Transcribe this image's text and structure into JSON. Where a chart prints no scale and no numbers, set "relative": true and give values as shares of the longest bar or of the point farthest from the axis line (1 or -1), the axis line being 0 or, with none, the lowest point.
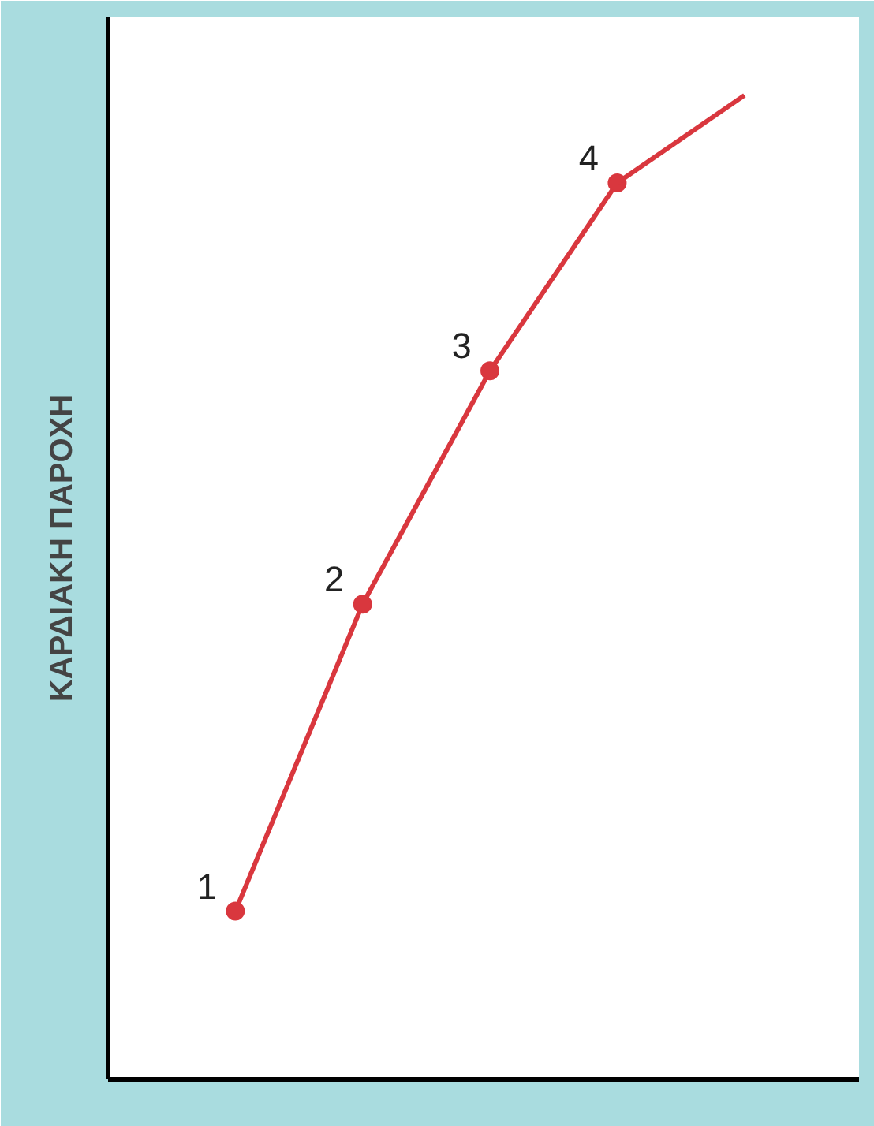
{
  "chart_data": {
    "type": "line",
    "relative": true,
    "ylabel": "ΚΑΡΔΙΑΚΗ ΠΑΡΟΧΗ",
    "line_style": "solid",
    "categories": [
      null,
      null,
      null,
      null,
      null
    ],
    "series": [
      {
        "color": "#d9373e",
        "values": [
          0.171,
          0.483,
          0.72,
          0.911,
          null
        ],
        "marker": "circle"
      },
      {
        "color": "#d9373e",
        "values": [
          null,
          null,
          null,
          0.911,
          1
        ]
      }
    ],
    "annotations": [
      "1",
      "2",
      "3",
      "4"
    ]
  }
}
